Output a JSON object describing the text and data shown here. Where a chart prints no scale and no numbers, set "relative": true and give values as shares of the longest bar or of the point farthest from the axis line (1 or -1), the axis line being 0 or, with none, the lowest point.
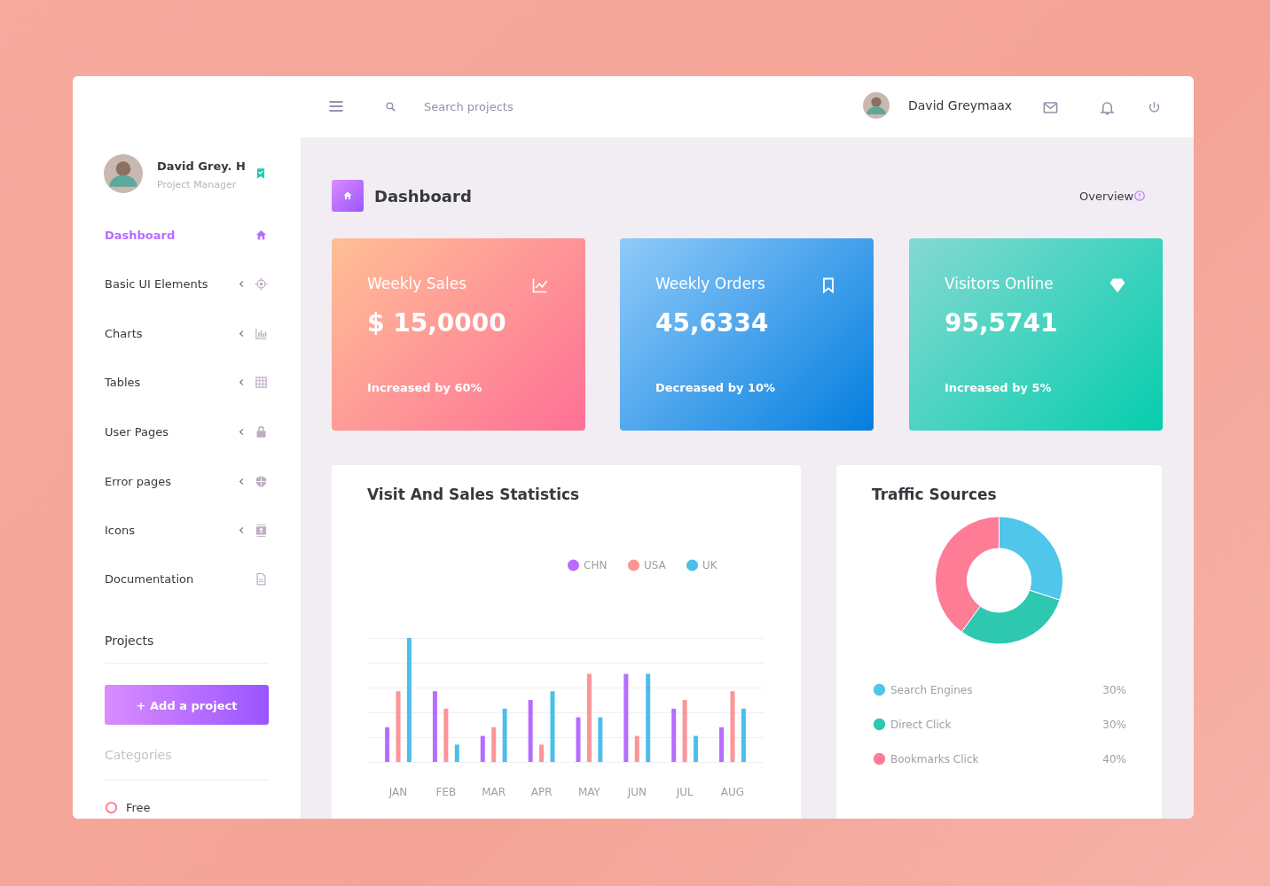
{
  "chart_data": [
    {
      "type": "other",
      "annotations": [
        "David Grey. H",
        "Project Manager",
        "Dashboard",
        "Basic UI Elements",
        "Charts",
        "Tables",
        "User Pages",
        "Error pages",
        "Icons",
        "Documentation",
        "Projects",
        "+ Add a project",
        "Categories",
        "Free"
      ]
    },
    {
      "type": "other",
      "title": "Dashboard",
      "annotations": [
        "Search projects",
        "David Greymaax",
        "Overview"
      ]
    },
    {
      "type": "other",
      "title": "Weekly Sales",
      "annotations": [
        "$ 15,0000",
        "Increased by 60%"
      ]
    },
    {
      "type": "other",
      "title": "Weekly Orders",
      "annotations": [
        "45,6334",
        "Decreased by 10%"
      ]
    },
    {
      "type": "other",
      "title": "Visitors Online",
      "annotations": [
        "95,5741",
        "Increased by 5%"
      ]
    },
    {
      "type": "bar",
      "title": "Visit And Sales Statistics",
      "relative": true,
      "grid": "y",
      "legend": "top right",
      "categories": [
        "JAN",
        "FEB",
        "MAR",
        "APR",
        "MAY",
        "JUN",
        "JUL",
        "AUG"
      ],
      "series": [
        {
          "name": "CHN",
          "color": "#b66dff",
          "values": [
            0.28,
            0.57,
            0.21,
            0.5,
            0.36,
            0.71,
            0.43,
            0.28
          ]
        },
        {
          "name": "USA",
          "color": "#fe9496",
          "values": [
            0.57,
            0.43,
            0.28,
            0.14,
            0.71,
            0.21,
            0.5,
            0.57
          ]
        },
        {
          "name": "UK",
          "color": "#4bbfea",
          "values": [
            1,
            0.14,
            0.43,
            0.57,
            0.36,
            0.71,
            0.21,
            0.43
          ]
        }
      ]
    },
    {
      "type": "donut",
      "title": "Traffic Sources",
      "legend": "bottom",
      "value_labels": [
        "30%",
        "30%",
        "40%"
      ],
      "categories": [
        "Search Engines",
        "Direct Click",
        "Bookmarks Click"
      ],
      "values": [
        30,
        30,
        40
      ],
      "colors": [
        "#4fc6ea",
        "#2ec7b0",
        "#fe7c96"
      ]
    }
  ]
}
